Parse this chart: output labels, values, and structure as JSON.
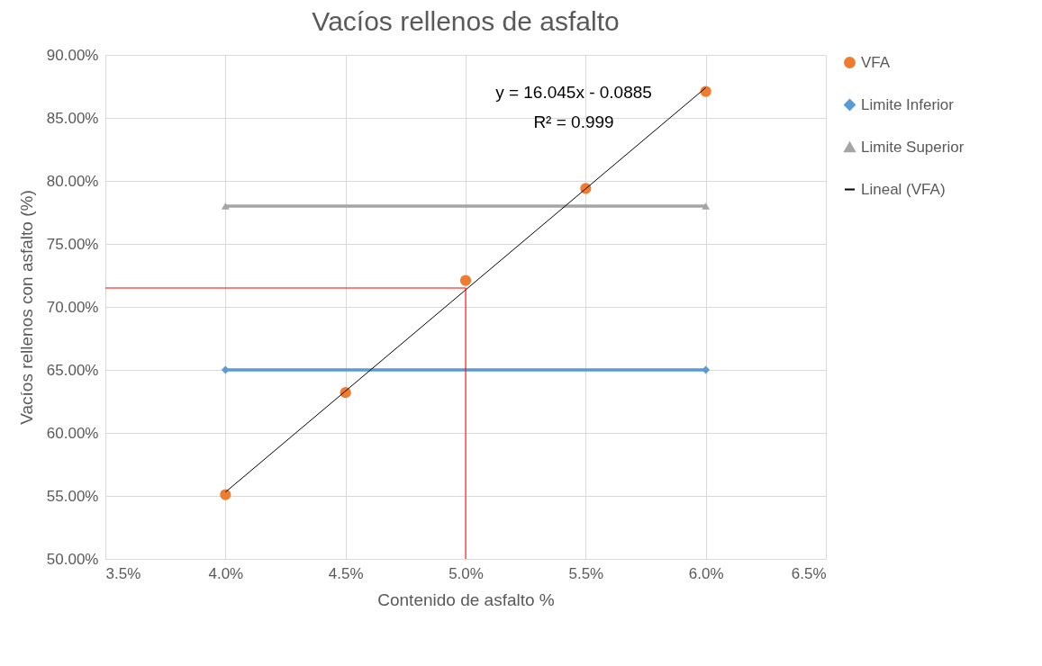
{
  "chart_data": {
    "type": "scatter",
    "title": "Vacíos rellenos de asfalto",
    "xlabel": "Contenido de asfalto %",
    "ylabel": "Vacíos  rellenos con asfalto (%)",
    "xlim": [
      3.5,
      6.5
    ],
    "xticks": [
      {
        "value": 3.5,
        "label": "3.5%"
      },
      {
        "value": 4,
        "label": "4.0%"
      },
      {
        "value": 4.5,
        "label": "4.5%"
      },
      {
        "value": 5,
        "label": "5.0%"
      },
      {
        "value": 5.5,
        "label": "5.5%"
      },
      {
        "value": 6,
        "label": "6.0%"
      },
      {
        "value": 6.5,
        "label": "6.5%"
      }
    ],
    "ylim": [
      50,
      90
    ],
    "yticks": [
      {
        "value": 50,
        "label": "50.00%"
      },
      {
        "value": 55,
        "label": "55.00%"
      },
      {
        "value": 60,
        "label": "60.00%"
      },
      {
        "value": 65,
        "label": "65.00%"
      },
      {
        "value": 70,
        "label": "70.00%"
      },
      {
        "value": 75,
        "label": "75.00%"
      },
      {
        "value": 80,
        "label": "80.00%"
      },
      {
        "value": 85,
        "label": "85.00%"
      },
      {
        "value": 90,
        "label": "90.00%"
      }
    ],
    "grid": true,
    "legend": "right",
    "series": [
      {
        "name": "VFA",
        "type": "scatter",
        "marker": "circle",
        "color": "#ed7d31",
        "x": [
          4,
          4.5,
          5,
          5.5,
          6
        ],
        "values": [
          55.1,
          63.2,
          72.1,
          79.4,
          87.1
        ]
      },
      {
        "name": "Limite Inferior",
        "type": "line",
        "marker": "diamond",
        "color": "#5b9bd5",
        "x": [
          4,
          6
        ],
        "values": [
          65,
          65
        ]
      },
      {
        "name": "Limite Superior",
        "type": "line",
        "marker": "triangle",
        "color": "#a5a5a5",
        "x": [
          4,
          6
        ],
        "values": [
          78,
          78
        ]
      },
      {
        "name": "Lineal (VFA)",
        "type": "line",
        "marker": "none",
        "color": "#000000",
        "x": [
          4,
          6
        ],
        "values": [
          55.3,
          87.4
        ]
      },
      {
        "type": "line",
        "marker": "none",
        "color": "#ff0000",
        "x": [
          3.5,
          5,
          5
        ],
        "values": [
          71.5,
          71.5,
          50
        ]
      }
    ],
    "annotations": [
      "y = 16.045x - 0.0885",
      "R² = 0.999"
    ]
  }
}
